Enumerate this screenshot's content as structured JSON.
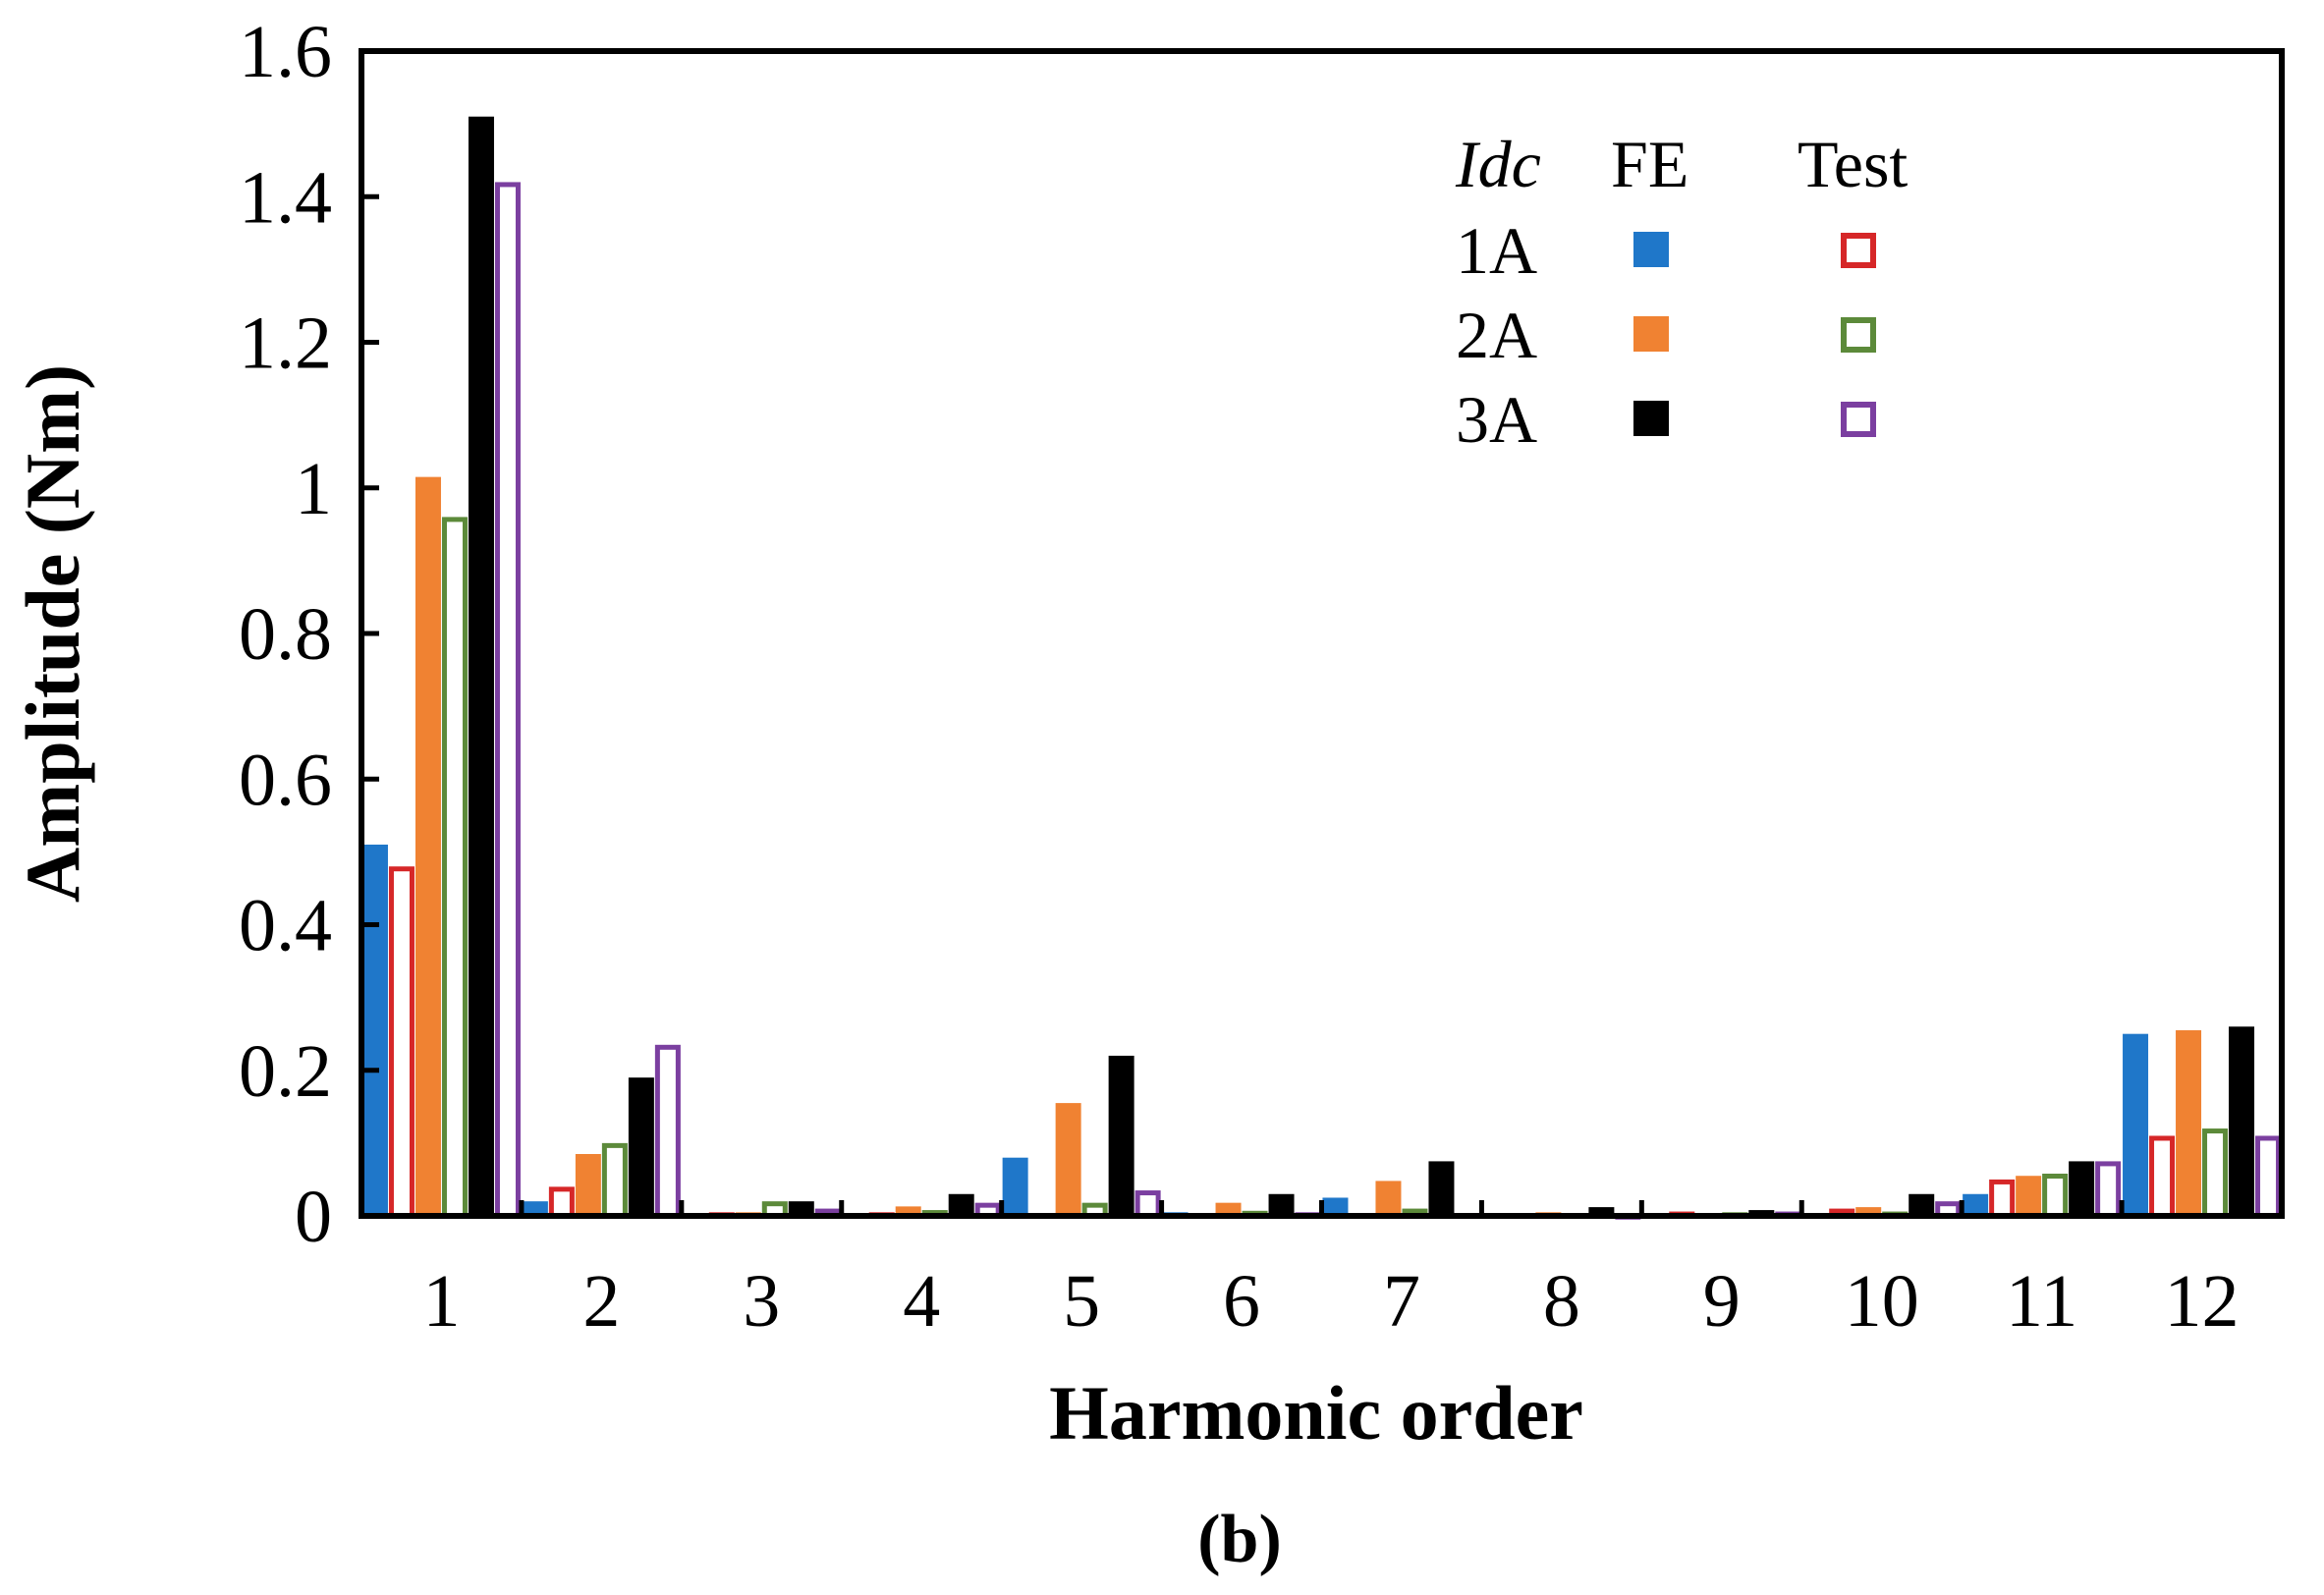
{
  "chart_data": {
    "type": "bar",
    "title": "",
    "xlabel": "Harmonic order",
    "ylabel": "Amplitude (Nm)",
    "caption": "(b)",
    "categories": [
      "1",
      "2",
      "3",
      "4",
      "5",
      "6",
      "7",
      "8",
      "9",
      "10",
      "11",
      "12"
    ],
    "ylim": [
      0,
      1.6
    ],
    "yticks": [
      "0",
      "0.2",
      "0.4",
      "0.6",
      "0.8",
      "1",
      "1.2",
      "1.4",
      "1.6"
    ],
    "grid": false,
    "legend": {
      "placement": "top-right",
      "header": {
        "current": "Idc",
        "fe": "FE",
        "test": "Test"
      },
      "rows": [
        "1A",
        "2A",
        "3A"
      ]
    },
    "series": [
      {
        "name": "FE 1A",
        "style": "filled",
        "color": "#1f77c9",
        "values": [
          0.51,
          0.02,
          0.0,
          0.0,
          0.08,
          0.005,
          0.025,
          0.003,
          0.004,
          0.004,
          0.03,
          0.25
        ]
      },
      {
        "name": "Test 1A",
        "style": "outline",
        "color": "#d62728",
        "values": [
          0.48,
          0.04,
          0.005,
          0.005,
          0.0,
          0.0,
          0.0,
          0.004,
          0.006,
          0.01,
          0.05,
          0.11
        ]
      },
      {
        "name": "FE 2A",
        "style": "filled",
        "color": "#f08232",
        "values": [
          1.015,
          0.085,
          0.005,
          0.013,
          0.155,
          0.018,
          0.048,
          0.005,
          0.0,
          0.012,
          0.055,
          0.255
        ]
      },
      {
        "name": "Test 2A",
        "style": "outline",
        "color": "#5c8a3a",
        "values": [
          0.96,
          0.1,
          0.02,
          0.008,
          0.018,
          0.007,
          0.01,
          0.004,
          0.005,
          0.006,
          0.058,
          0.12
        ]
      },
      {
        "name": "FE 3A",
        "style": "filled",
        "color": "#000000",
        "values": [
          1.51,
          0.19,
          0.02,
          0.03,
          0.22,
          0.03,
          0.075,
          0.012,
          0.008,
          0.03,
          0.075,
          0.26
        ]
      },
      {
        "name": "Test 3A",
        "style": "outline",
        "color": "#7b3fa0",
        "values": [
          1.42,
          0.235,
          0.01,
          0.018,
          0.035,
          0.005,
          0.004,
          0.003,
          0.006,
          0.02,
          0.075,
          0.11
        ]
      }
    ]
  }
}
